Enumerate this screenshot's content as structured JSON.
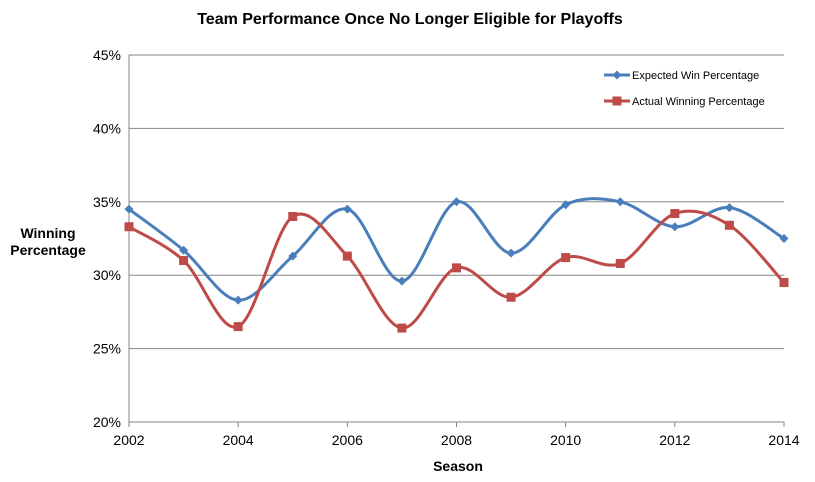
{
  "chart_data": {
    "type": "line",
    "title": "Team Performance Once No Longer Eligible for Playoffs",
    "xlabel": "Season",
    "ylabel_lines": [
      "Winning",
      "Percentage"
    ],
    "x": [
      2002,
      2003,
      2004,
      2005,
      2006,
      2007,
      2008,
      2009,
      2010,
      2011,
      2012,
      2013,
      2014
    ],
    "xlim": [
      2002,
      2014
    ],
    "x_ticks": [
      2002,
      2004,
      2006,
      2008,
      2010,
      2012,
      2014
    ],
    "x_tick_labels": [
      "2002",
      "2004",
      "2006",
      "2008",
      "2010",
      "2012",
      "2014"
    ],
    "ylim": [
      20,
      45
    ],
    "y_ticks": [
      20,
      25,
      30,
      35,
      40,
      45
    ],
    "y_tick_labels": [
      "20%",
      "25%",
      "30%",
      "35%",
      "40%",
      "45%"
    ],
    "grid": "horizontal",
    "legend_position": "top-right",
    "series": [
      {
        "name": "Expected Win Percentage",
        "color": "#4a7ebb",
        "marker": "diamond",
        "values": [
          34.5,
          31.7,
          28.3,
          31.3,
          34.5,
          29.6,
          35.0,
          31.5,
          34.8,
          35.0,
          33.3,
          34.6,
          32.5
        ]
      },
      {
        "name": "Actual Winning Percentage",
        "color": "#be4b48",
        "marker": "square",
        "values": [
          33.3,
          31.0,
          26.5,
          34.0,
          31.3,
          26.4,
          30.5,
          28.5,
          31.2,
          30.8,
          34.2,
          33.4,
          29.5
        ]
      }
    ]
  }
}
